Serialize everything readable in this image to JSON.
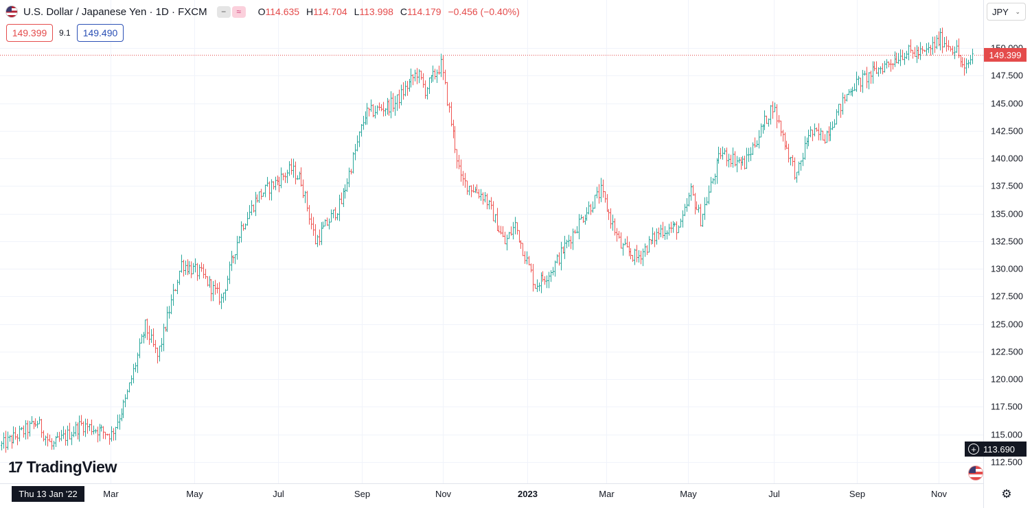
{
  "header": {
    "title": "U.S. Dollar / Japanese Yen · 1D · FXCM",
    "o_label": "O",
    "o_value": "114.635",
    "h_label": "H",
    "h_value": "114.704",
    "l_label": "L",
    "l_value": "113.998",
    "c_label": "C",
    "c_value": "114.179",
    "change": "−0.456 (−0.40%)",
    "pill_minus": "−",
    "pill_approx": "≈"
  },
  "quote": {
    "bid": "149.399",
    "spread": "9.1",
    "ask": "149.490"
  },
  "currency_selector": {
    "value": "JPY",
    "chevron": "⌄"
  },
  "branding": {
    "logo_mark": "17",
    "logo_text": "TradingView"
  },
  "crosshair": {
    "date_label": "Thu 13 Jan '22",
    "price_label": "113.690",
    "plus": "+"
  },
  "last_price": {
    "value": "149.399"
  },
  "settings": {
    "icon": "⚙"
  },
  "colors": {
    "up": "#26a69a",
    "down": "#ef5350",
    "grid": "#f0f3fa",
    "text": "#131722",
    "last_price": "#e44b4b"
  },
  "chart_data": {
    "type": "ohlc",
    "symbol": "USDJPY",
    "interval": "1D",
    "y_axis": {
      "range": [
        111.0,
        152.0
      ],
      "ticks": [
        "112.500",
        "115.000",
        "117.500",
        "120.000",
        "122.500",
        "125.000",
        "127.500",
        "130.000",
        "132.500",
        "135.000",
        "137.500",
        "140.000",
        "142.500",
        "145.000",
        "147.500",
        "150.000"
      ]
    },
    "x_axis": {
      "labels": [
        {
          "label": "Mar",
          "bold": false
        },
        {
          "label": "May",
          "bold": false
        },
        {
          "label": "Jul",
          "bold": false
        },
        {
          "label": "Sep",
          "bold": false
        },
        {
          "label": "Nov",
          "bold": false
        },
        {
          "label": "2023",
          "bold": true
        },
        {
          "label": "Mar",
          "bold": false
        },
        {
          "label": "May",
          "bold": false
        },
        {
          "label": "Jul",
          "bold": false
        },
        {
          "label": "Sep",
          "bold": false
        },
        {
          "label": "Nov",
          "bold": false
        }
      ]
    },
    "last_price_line": 149.399,
    "price_path": [
      {
        "bar": 0,
        "price": 114.0
      },
      {
        "bar": 18,
        "price": 116.1
      },
      {
        "bar": 25,
        "price": 113.9
      },
      {
        "bar": 40,
        "price": 115.9
      },
      {
        "bar": 55,
        "price": 115.0
      },
      {
        "bar": 62,
        "price": 118.0
      },
      {
        "bar": 72,
        "price": 124.8
      },
      {
        "bar": 78,
        "price": 122.0
      },
      {
        "bar": 90,
        "price": 130.5
      },
      {
        "bar": 100,
        "price": 129.5
      },
      {
        "bar": 110,
        "price": 127.2
      },
      {
        "bar": 120,
        "price": 133.8
      },
      {
        "bar": 128,
        "price": 136.5
      },
      {
        "bar": 145,
        "price": 139.0
      },
      {
        "bar": 150,
        "price": 138.0
      },
      {
        "bar": 157,
        "price": 132.5
      },
      {
        "bar": 170,
        "price": 136.0
      },
      {
        "bar": 182,
        "price": 144.0
      },
      {
        "bar": 197,
        "price": 145.0
      },
      {
        "bar": 208,
        "price": 147.8
      },
      {
        "bar": 212,
        "price": 146.2
      },
      {
        "bar": 220,
        "price": 148.5
      },
      {
        "bar": 230,
        "price": 138.0
      },
      {
        "bar": 242,
        "price": 136.5
      },
      {
        "bar": 252,
        "price": 132.3
      },
      {
        "bar": 257,
        "price": 134.0
      },
      {
        "bar": 267,
        "price": 128.5
      },
      {
        "bar": 275,
        "price": 129.8
      },
      {
        "bar": 290,
        "price": 134.5
      },
      {
        "bar": 300,
        "price": 137.0
      },
      {
        "bar": 310,
        "price": 132.0
      },
      {
        "bar": 318,
        "price": 131.0
      },
      {
        "bar": 330,
        "price": 133.5
      },
      {
        "bar": 340,
        "price": 133.8
      },
      {
        "bar": 345,
        "price": 137.0
      },
      {
        "bar": 350,
        "price": 134.5
      },
      {
        "bar": 360,
        "price": 140.5
      },
      {
        "bar": 372,
        "price": 139.5
      },
      {
        "bar": 386,
        "price": 144.8
      },
      {
        "bar": 392,
        "price": 141.5
      },
      {
        "bar": 398,
        "price": 138.3
      },
      {
        "bar": 404,
        "price": 142.3
      },
      {
        "bar": 412,
        "price": 142.0
      },
      {
        "bar": 425,
        "price": 146.4
      },
      {
        "bar": 440,
        "price": 148.2
      },
      {
        "bar": 452,
        "price": 149.6
      },
      {
        "bar": 462,
        "price": 149.5
      },
      {
        "bar": 470,
        "price": 150.8
      },
      {
        "bar": 478,
        "price": 149.8
      },
      {
        "bar": 482,
        "price": 147.8
      },
      {
        "bar": 486,
        "price": 149.4
      }
    ]
  }
}
